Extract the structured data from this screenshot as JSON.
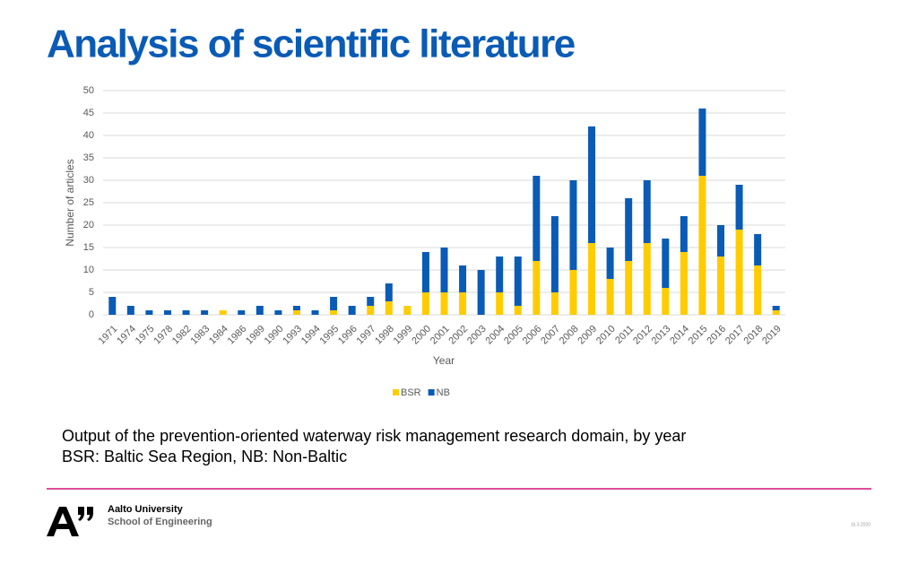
{
  "chart_data": {
    "type": "stacked_bar",
    "title": "Analysis of scientific literature",
    "x_label": "Year",
    "y_label": "Number of articles",
    "categories": [
      "1971",
      "1974",
      "1975",
      "1978",
      "1982",
      "1983",
      "1984",
      "1986",
      "1989",
      "1990",
      "1993",
      "1994",
      "1995",
      "1996",
      "1997",
      "1998",
      "1999",
      "2000",
      "2001",
      "2002",
      "2003",
      "2004",
      "2005",
      "2006",
      "2007",
      "2008",
      "2009",
      "2010",
      "2011",
      "2012",
      "2013",
      "2014",
      "2015",
      "2016",
      "2017",
      "2018",
      "2019"
    ],
    "series": [
      {
        "name": "BSR",
        "color": "#ffcc00",
        "values": [
          0,
          0,
          0,
          0,
          0,
          0,
          1,
          0,
          0,
          0,
          1,
          0,
          1,
          0,
          2,
          3,
          2,
          5,
          5,
          5,
          0,
          5,
          2,
          12,
          5,
          10,
          16,
          8,
          12,
          16,
          6,
          14,
          31,
          13,
          19,
          11,
          1
        ]
      },
      {
        "name": "NB",
        "color": "#0a5bb5",
        "values": [
          4,
          2,
          1,
          1,
          1,
          1,
          0,
          1,
          2,
          1,
          1,
          1,
          3,
          2,
          2,
          4,
          0,
          9,
          10,
          6,
          10,
          8,
          11,
          19,
          17,
          20,
          26,
          7,
          14,
          14,
          11,
          8,
          15,
          7,
          10,
          7,
          1
        ]
      }
    ],
    "ylim": [
      0,
      50
    ],
    "yticks": [
      0,
      5,
      10,
      15,
      20,
      25,
      30,
      35,
      40,
      45,
      50
    ],
    "grid": true,
    "legend": "bottom"
  },
  "notes": [
    "Output of the prevention-oriented waterway risk management research domain, by year",
    "BSR: Baltic Sea Region, NB: Non-Baltic"
  ],
  "footer": {
    "university": "Aalto University",
    "school": "School of Engineering",
    "date": "16.3.2020"
  }
}
